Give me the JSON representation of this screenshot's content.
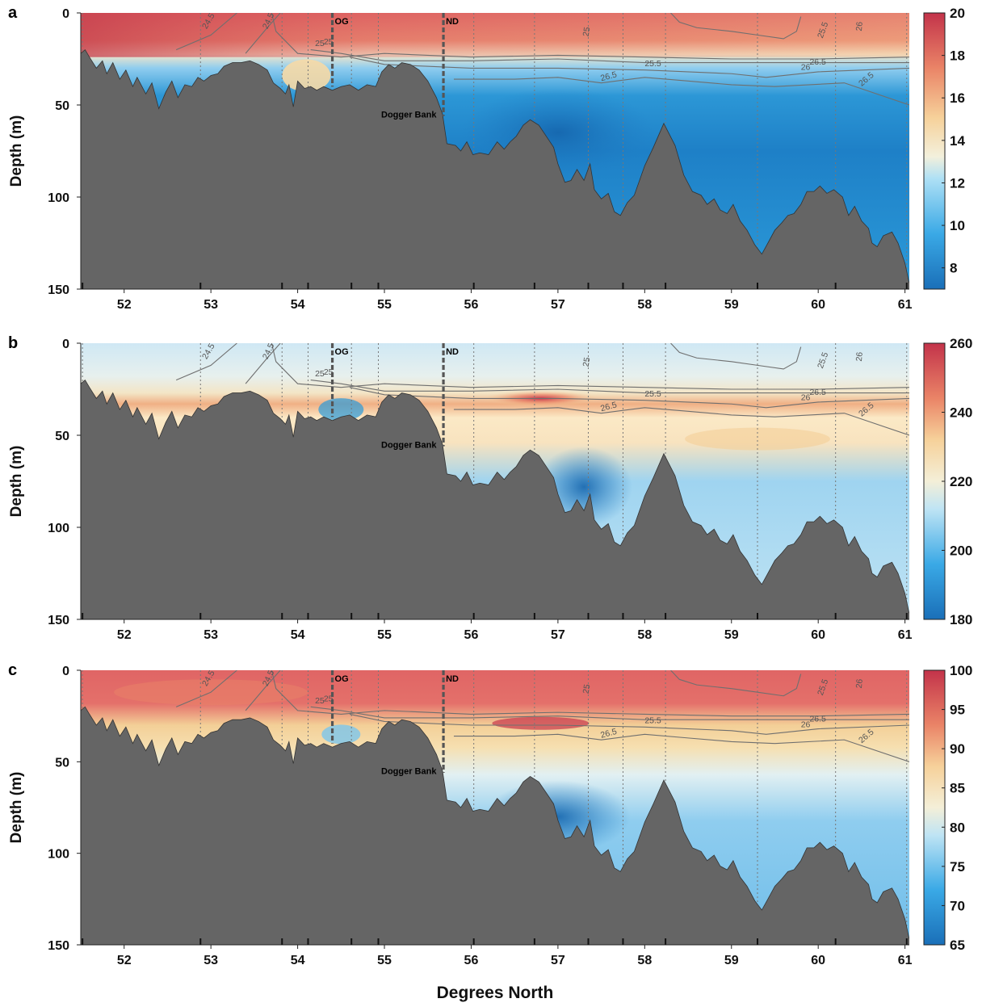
{
  "figure": {
    "xlabel": "Degrees North",
    "ylabel": "Depth (m)",
    "xlim": [
      51.5,
      61.05
    ],
    "ylim": [
      150,
      0
    ],
    "xticks": [
      52,
      53,
      54,
      55,
      56,
      57,
      58,
      59,
      60,
      61
    ],
    "yticks": [
      0,
      50,
      100,
      150
    ],
    "land_color": "#656565",
    "markers": [
      {
        "label": "OG",
        "lat": 54.4
      },
      {
        "label": "ND",
        "lat": 55.68
      }
    ],
    "bank_label": "Dogger Bank",
    "station_lats": [
      51.52,
      52.88,
      53.82,
      54.12,
      54.62,
      54.93,
      56.03,
      56.73,
      57.35,
      57.75,
      58.24,
      59.3,
      60.2,
      61.02
    ],
    "bathymetry": [
      [
        51.5,
        22
      ],
      [
        51.55,
        20
      ],
      [
        51.6,
        24
      ],
      [
        51.68,
        30
      ],
      [
        51.75,
        26
      ],
      [
        51.8,
        33
      ],
      [
        51.87,
        27
      ],
      [
        51.95,
        36
      ],
      [
        52.02,
        31
      ],
      [
        52.1,
        40
      ],
      [
        52.15,
        35
      ],
      [
        52.25,
        44
      ],
      [
        52.32,
        38
      ],
      [
        52.4,
        52
      ],
      [
        52.48,
        43
      ],
      [
        52.55,
        37
      ],
      [
        52.62,
        46
      ],
      [
        52.7,
        39
      ],
      [
        52.78,
        40
      ],
      [
        52.85,
        35
      ],
      [
        52.92,
        37
      ],
      [
        53.0,
        34
      ],
      [
        53.08,
        33
      ],
      [
        53.15,
        29
      ],
      [
        53.25,
        27
      ],
      [
        53.35,
        27
      ],
      [
        53.45,
        26
      ],
      [
        53.55,
        28
      ],
      [
        53.65,
        31
      ],
      [
        53.72,
        38
      ],
      [
        53.8,
        41
      ],
      [
        53.86,
        44
      ],
      [
        53.9,
        39
      ],
      [
        53.95,
        51
      ],
      [
        54.0,
        37
      ],
      [
        54.08,
        41
      ],
      [
        54.15,
        40
      ],
      [
        54.22,
        42
      ],
      [
        54.3,
        40
      ],
      [
        54.4,
        42
      ],
      [
        54.5,
        40
      ],
      [
        54.6,
        39
      ],
      [
        54.7,
        42
      ],
      [
        54.8,
        39
      ],
      [
        54.9,
        40
      ],
      [
        54.97,
        32
      ],
      [
        55.05,
        28
      ],
      [
        55.12,
        30
      ],
      [
        55.2,
        27
      ],
      [
        55.3,
        28
      ],
      [
        55.4,
        31
      ],
      [
        55.5,
        37
      ],
      [
        55.6,
        46
      ],
      [
        55.67,
        55
      ],
      [
        55.72,
        71
      ],
      [
        55.82,
        72
      ],
      [
        55.88,
        75
      ],
      [
        55.95,
        70
      ],
      [
        56.02,
        77
      ],
      [
        56.1,
        76
      ],
      [
        56.2,
        77
      ],
      [
        56.3,
        70
      ],
      [
        56.38,
        74
      ],
      [
        56.45,
        70
      ],
      [
        56.52,
        67
      ],
      [
        56.6,
        61
      ],
      [
        56.68,
        58
      ],
      [
        56.78,
        61
      ],
      [
        56.88,
        68
      ],
      [
        56.95,
        73
      ],
      [
        57.0,
        82
      ],
      [
        57.08,
        92
      ],
      [
        57.15,
        91
      ],
      [
        57.22,
        85
      ],
      [
        57.3,
        91
      ],
      [
        57.37,
        82
      ],
      [
        57.42,
        96
      ],
      [
        57.5,
        101
      ],
      [
        57.58,
        98
      ],
      [
        57.65,
        108
      ],
      [
        57.72,
        110
      ],
      [
        57.8,
        103
      ],
      [
        57.88,
        99
      ],
      [
        58.0,
        83
      ],
      [
        58.1,
        73
      ],
      [
        58.22,
        60
      ],
      [
        58.35,
        72
      ],
      [
        58.45,
        88
      ],
      [
        58.55,
        97
      ],
      [
        58.65,
        99
      ],
      [
        58.72,
        104
      ],
      [
        58.8,
        101
      ],
      [
        58.87,
        107
      ],
      [
        58.95,
        109
      ],
      [
        59.02,
        104
      ],
      [
        59.1,
        113
      ],
      [
        59.18,
        118
      ],
      [
        59.27,
        126
      ],
      [
        59.35,
        131
      ],
      [
        59.42,
        125
      ],
      [
        59.5,
        118
      ],
      [
        59.58,
        114
      ],
      [
        59.65,
        110
      ],
      [
        59.72,
        109
      ],
      [
        59.8,
        104
      ],
      [
        59.87,
        97
      ],
      [
        59.95,
        97
      ],
      [
        60.02,
        94
      ],
      [
        60.1,
        98
      ],
      [
        60.18,
        96
      ],
      [
        60.28,
        100
      ],
      [
        60.35,
        110
      ],
      [
        60.42,
        105
      ],
      [
        60.5,
        113
      ],
      [
        60.58,
        117
      ],
      [
        60.62,
        125
      ],
      [
        60.68,
        127
      ],
      [
        60.75,
        121
      ],
      [
        60.85,
        119
      ],
      [
        60.92,
        125
      ],
      [
        61.0,
        136
      ],
      [
        61.05,
        147
      ]
    ]
  },
  "panels": [
    {
      "id": "a",
      "label": "a",
      "colorbar": {
        "min": 7,
        "max": 20,
        "ticks": [
          "20",
          "18",
          "16",
          "14",
          "12",
          "10",
          "8"
        ],
        "tick_values": [
          20,
          18,
          16,
          14,
          12,
          10,
          8
        ]
      },
      "contour_labels": [
        "24.5",
        "24.5",
        "25",
        "25",
        "25",
        "25.5",
        "25.5",
        "26",
        "26",
        "26.5",
        "26.5",
        "26.5"
      ]
    },
    {
      "id": "b",
      "label": "b",
      "colorbar": {
        "min": 180,
        "max": 260,
        "ticks": [
          "260",
          "240",
          "220",
          "200",
          "180"
        ],
        "tick_values": [
          260,
          240,
          220,
          200,
          180
        ]
      },
      "contour_labels": [
        "24.5",
        "24.5",
        "25",
        "25",
        "25",
        "25.5",
        "25.5",
        "26",
        "26",
        "26.5",
        "26.5",
        "26.5"
      ]
    },
    {
      "id": "c",
      "label": "c",
      "colorbar": {
        "min": 65,
        "max": 100,
        "ticks": [
          "100",
          "95",
          "90",
          "85",
          "80",
          "75",
          "70",
          "65"
        ],
        "tick_values": [
          100,
          95,
          90,
          85,
          80,
          75,
          70,
          65
        ]
      },
      "contour_labels": [
        "24.5",
        "24.5",
        "25",
        "25",
        "25",
        "25.5",
        "25.5",
        "26",
        "26",
        "26.5",
        "26.5",
        "26.5"
      ]
    }
  ],
  "chart_data": [
    {
      "type": "heatmap",
      "panel": "a",
      "xlabel": "Degrees North",
      "ylabel": "Depth (m)",
      "xlim": [
        51.5,
        61.05
      ],
      "ylim": [
        150,
        0
      ],
      "colorbar": {
        "min": 7,
        "max": 20
      },
      "contours": [
        24.5,
        25,
        25.5,
        26,
        26.5
      ]
    },
    {
      "type": "heatmap",
      "panel": "b",
      "xlabel": "Degrees North",
      "ylabel": "Depth (m)",
      "xlim": [
        51.5,
        61.05
      ],
      "ylim": [
        150,
        0
      ],
      "colorbar": {
        "min": 180,
        "max": 260
      },
      "contours": [
        24.5,
        25,
        25.5,
        26,
        26.5
      ]
    },
    {
      "type": "heatmap",
      "panel": "c",
      "xlabel": "Degrees North",
      "ylabel": "Depth (m)",
      "xlim": [
        51.5,
        61.05
      ],
      "ylim": [
        150,
        0
      ],
      "colorbar": {
        "min": 65,
        "max": 100
      },
      "contours": [
        24.5,
        25,
        25.5,
        26,
        26.5
      ]
    }
  ]
}
